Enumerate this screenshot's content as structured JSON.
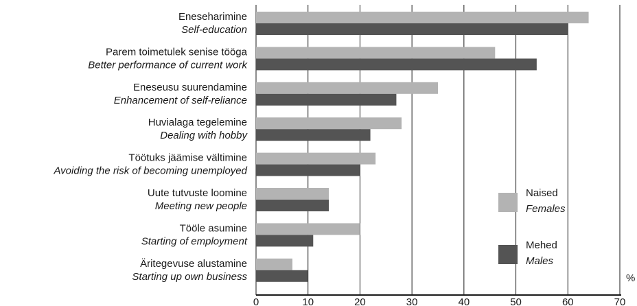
{
  "chart_data": {
    "type": "bar",
    "orientation": "horizontal",
    "categories": [
      {
        "et": "Eneseharimine",
        "en": "Self-education"
      },
      {
        "et": "Parem toimetulek senise tööga",
        "en": "Better performance of current work"
      },
      {
        "et": "Eneseusu suurendamine",
        "en": "Enhancement of self-reliance"
      },
      {
        "et": "Huvialaga tegelemine",
        "en": "Dealing with hobby"
      },
      {
        "et": "Töötuks jäämise vältimine",
        "en": "Avoiding the risk of becoming unemployed"
      },
      {
        "et": "Uute tutvuste loomine",
        "en": "Meeting new people"
      },
      {
        "et": "Tööle asumine",
        "en": "Starting of employment"
      },
      {
        "et": "Äritegevuse alustamine",
        "en": "Starting up own business"
      }
    ],
    "series": [
      {
        "name": "Naised",
        "name_en": "Females",
        "color": "#b3b3b3",
        "values": [
          64,
          46,
          35,
          28,
          23,
          14,
          20,
          7
        ]
      },
      {
        "name": "Mehed",
        "name_en": "Males",
        "color": "#545454",
        "values": [
          60,
          54,
          27,
          22,
          20,
          14,
          11,
          10
        ]
      }
    ],
    "xlim": [
      0,
      70
    ],
    "xticks": [
      0,
      10,
      20,
      30,
      40,
      50,
      60,
      70
    ],
    "unit_label": "%",
    "grid": "vertical",
    "legend_position": "right"
  }
}
